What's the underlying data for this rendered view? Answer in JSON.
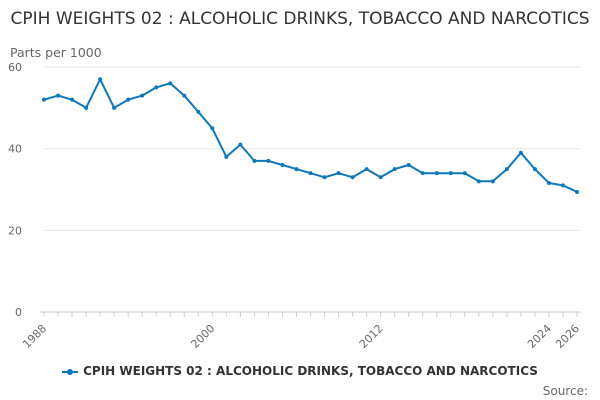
{
  "chart_data": {
    "type": "line",
    "title": "CPIH WEIGHTS 02 : ALCOHOLIC DRINKS, TOBACCO AND NARCOTICS",
    "ylabel": "Parts per 1000",
    "xlabel": "",
    "ylim": [
      0,
      60
    ],
    "yticks": [
      0,
      20,
      40,
      60
    ],
    "xlim": [
      1988,
      2026
    ],
    "xticks": [
      1988,
      2000,
      2012,
      2024,
      2026
    ],
    "grid": true,
    "legend_position": "bottom",
    "color": "#0d77bb",
    "series": [
      {
        "name": "CPIH WEIGHTS 02 : ALCOHOLIC DRINKS, TOBACCO AND NARCOTICS",
        "x": [
          1988,
          1989,
          1990,
          1991,
          1992,
          1993,
          1994,
          1995,
          1996,
          1997,
          1998,
          1999,
          2000,
          2001,
          2002,
          2003,
          2004,
          2005,
          2006,
          2007,
          2008,
          2009,
          2010,
          2011,
          2012,
          2013,
          2014,
          2015,
          2016,
          2017,
          2018,
          2019,
          2020,
          2021,
          2022,
          2023,
          2024,
          2025,
          2026
        ],
        "values": [
          52,
          53,
          52,
          50,
          57,
          50,
          52,
          53,
          55,
          56,
          53,
          49,
          45,
          38,
          41,
          37,
          37,
          36,
          35,
          34,
          33,
          34,
          33,
          35,
          33,
          35,
          36,
          34,
          34,
          34,
          34,
          32,
          32,
          35,
          39,
          35,
          31.6,
          31,
          29.4
        ]
      }
    ]
  },
  "source_label": "Source:"
}
